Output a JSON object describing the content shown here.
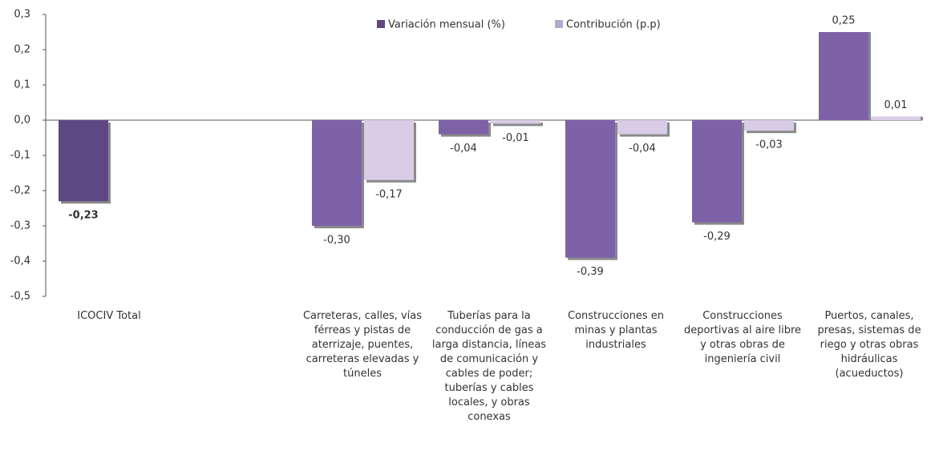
{
  "chart_data": {
    "type": "bar",
    "categories": [
      "ICOCIV Total",
      null,
      "Carreteras, calles, vías férreas y pistas de aterrizaje, puentes, carreteras elevadas y túneles",
      "Tuberías para la conducción de gas a larga distancia, líneas de comunicación y cables de poder; tuberías y cables locales, y obras conexas",
      "Construcciones en minas y plantas industriales",
      "Construcciones deportivas al aire libre y otras obras de ingeniería civil",
      "Puertos, canales, presas, sistemas de riego y otras obras hidráulicas (acueductos)"
    ],
    "series": [
      {
        "name": "Variación mensual (%)",
        "color": "#7e62a8",
        "colors": [
          "#5e4884",
          null,
          "#7e62a8",
          "#7e62a8",
          "#7e62a8",
          "#7e62a8",
          "#7e62a8"
        ],
        "values": [
          -0.23,
          null,
          -0.3,
          -0.04,
          -0.39,
          -0.29,
          0.25
        ],
        "value_labels": [
          "-0,23",
          null,
          "-0,30",
          "-0,04",
          "-0,39",
          "-0,29",
          "0,25"
        ]
      },
      {
        "name": "Contribución (p.p)",
        "color": "#d8cce6",
        "values": [
          null,
          null,
          -0.17,
          -0.01,
          -0.04,
          -0.03,
          0.01
        ],
        "value_labels": [
          null,
          null,
          "-0,17",
          "-0,01",
          "-0,04",
          "-0,03",
          "0,01"
        ]
      }
    ],
    "ylim": [
      -0.5,
      0.3
    ],
    "yticks": [
      {
        "value": -0.5,
        "label": "-0,5"
      },
      {
        "value": -0.4,
        "label": "-0,4"
      },
      {
        "value": -0.3,
        "label": "-0,3"
      },
      {
        "value": -0.2,
        "label": "-0,2"
      },
      {
        "value": -0.1,
        "label": "-0,1"
      },
      {
        "value": 0,
        "label": "0,0"
      },
      {
        "value": 0.1,
        "label": "0,1"
      },
      {
        "value": 0.2,
        "label": "0,2"
      },
      {
        "value": 0.3,
        "label": "0,3"
      }
    ],
    "legend": "top"
  }
}
